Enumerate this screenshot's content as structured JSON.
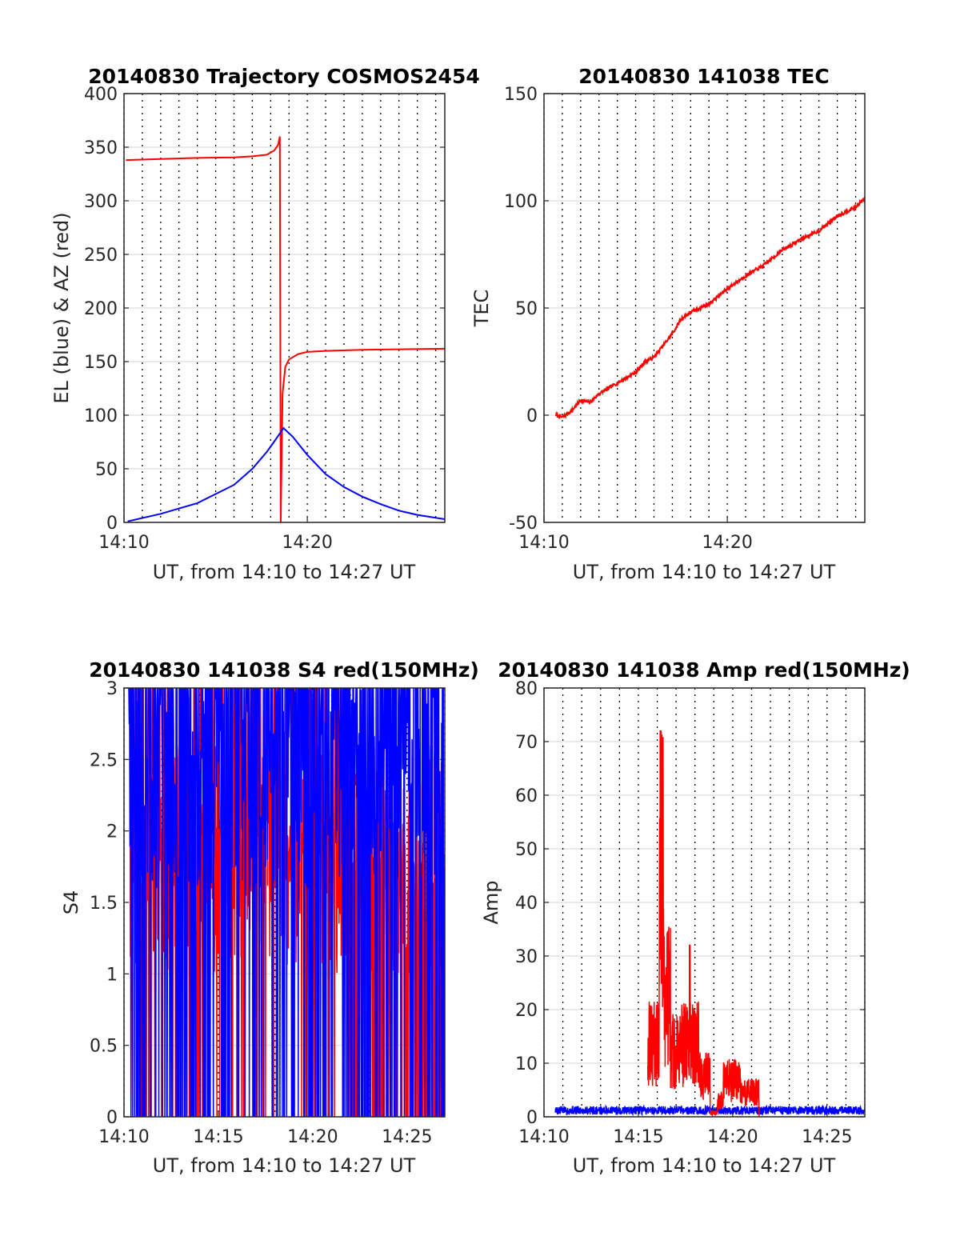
{
  "chart_data": [
    {
      "id": "trajectory",
      "type": "line",
      "title": "20140830 Trajectory COSMOS2454",
      "xlabel": "UT, from 14:10 to 14:27 UT",
      "ylabel": "EL (blue) & AZ (red)",
      "xlim": [
        0,
        17.5
      ],
      "ylim": [
        0,
        400
      ],
      "xtick_labels": [
        {
          "x": 0,
          "label": "14:10"
        },
        {
          "x": 10,
          "label": "14:20"
        }
      ],
      "ytick_labels": [
        "0",
        "50",
        "100",
        "150",
        "200",
        "250",
        "300",
        "350",
        "400"
      ],
      "grid": {
        "vertical": "dotted every 1 minute",
        "horizontal": "solid"
      },
      "series": [
        {
          "color": "#ff0000",
          "role": "azimuth",
          "x": [
            0.1,
            2,
            4,
            6,
            7,
            7.8,
            8.2,
            8.4,
            8.5,
            8.55,
            8.65,
            8.8,
            9.0,
            9.5,
            10,
            11,
            13,
            15,
            17.5
          ],
          "y": [
            338,
            339,
            340,
            340.5,
            341.5,
            343,
            347,
            352,
            360,
            0,
            120,
            145,
            152,
            157,
            159,
            160,
            161,
            161.5,
            162
          ]
        },
        {
          "color": "#0000ff",
          "role": "elevation",
          "x": [
            0.2,
            2,
            4,
            6,
            7,
            7.8,
            8.3,
            8.7,
            9.2,
            10,
            11,
            12,
            13,
            14,
            15,
            16,
            17.5
          ],
          "y": [
            1,
            8,
            18,
            35,
            50,
            66,
            78,
            88,
            80,
            63,
            45,
            33,
            24,
            17,
            11,
            7,
            3
          ]
        }
      ]
    },
    {
      "id": "tec",
      "type": "line",
      "title": "20140830 141038 TEC",
      "xlabel": "UT, from 14:10 to 14:27 UT",
      "ylabel": "TEC",
      "xlim": [
        0,
        17.5
      ],
      "ylim": [
        -50,
        150
      ],
      "xtick_labels": [
        {
          "x": 0,
          "label": "14:10"
        },
        {
          "x": 10,
          "label": "14:20"
        }
      ],
      "ytick_labels": [
        "-50",
        "0",
        "50",
        "100",
        "150"
      ],
      "grid": {
        "vertical": "dotted every 1 minute",
        "horizontal": "solid"
      },
      "series": [
        {
          "color": "#ff0000",
          "x": [
            0.65,
            1.0,
            1.5,
            2.0,
            2.5,
            3.0,
            4.0,
            5.0,
            5.5,
            6.0,
            7.0,
            7.5,
            8.0,
            9.0,
            10.0,
            11.0,
            12.0,
            13.0,
            14.0,
            15.0,
            16.0,
            17.0,
            17.5
          ],
          "y": [
            0,
            -1,
            2,
            7,
            6,
            10,
            15,
            20,
            25,
            27,
            38,
            45,
            48,
            52,
            59,
            65,
            70,
            77,
            82,
            86,
            93,
            97,
            101
          ]
        }
      ]
    },
    {
      "id": "s4",
      "type": "line",
      "title": "20140830 141038 S4 red(150MHz)",
      "xlabel": "UT, from 14:10 to 14:27 UT",
      "ylabel": "S4",
      "xlim": [
        0,
        17
      ],
      "ylim": [
        0,
        3
      ],
      "xtick_labels": [
        {
          "x": 0,
          "label": "14:10"
        },
        {
          "x": 5,
          "label": "14:15"
        },
        {
          "x": 10,
          "label": "14:20"
        },
        {
          "x": 15,
          "label": "14:25"
        }
      ],
      "ytick_labels": [
        "0",
        "0.5",
        "1",
        "1.5",
        "2",
        "2.5",
        "3"
      ],
      "grid": {
        "vertical": "dotted every 1 minute",
        "horizontal": "solid"
      },
      "series": [
        {
          "color": "#ff0000",
          "note": "noisy, mostly 1.0–3.0 with frequent drops to 0"
        },
        {
          "color": "#0000ff",
          "note": "noisy, saturating at 3 with frequent drops to 0"
        }
      ]
    },
    {
      "id": "amp",
      "type": "line",
      "title": "20140830 141038 Amp red(150MHz)",
      "xlabel": "UT, from 14:10 to 14:27 UT",
      "ylabel": "Amp",
      "xlim": [
        0,
        17
      ],
      "ylim": [
        0,
        80
      ],
      "xtick_labels": [
        {
          "x": 0,
          "label": "14:10"
        },
        {
          "x": 5,
          "label": "14:15"
        },
        {
          "x": 10,
          "label": "14:20"
        },
        {
          "x": 15,
          "label": "14:25"
        }
      ],
      "ytick_labels": [
        "0",
        "10",
        "20",
        "30",
        "40",
        "50",
        "60",
        "70",
        "80"
      ],
      "grid": {
        "vertical": "dotted every 1 minute",
        "horizontal": "solid"
      },
      "series": [
        {
          "color": "#ff0000",
          "note": "bursts 14:15.5–14:21.5, peak ~72 near 14:16"
        },
        {
          "color": "#0000ff",
          "note": "baseline ~0.5–2 across full range"
        }
      ]
    }
  ]
}
